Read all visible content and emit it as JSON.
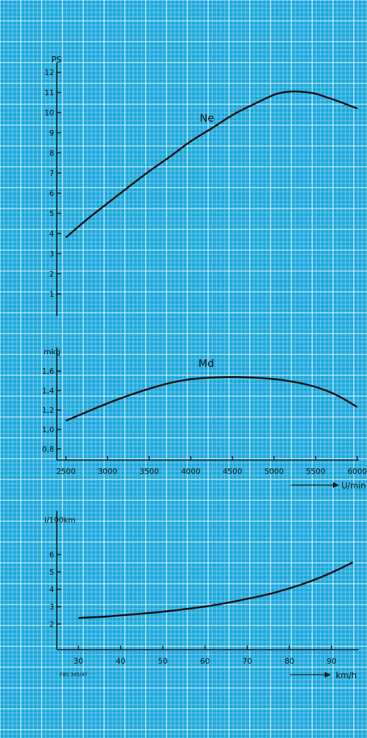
{
  "colors": {
    "paper": "#1aa8dc",
    "grid_minor": "#ffffff",
    "ink": "#111111"
  },
  "chart_data": [
    {
      "type": "line",
      "title": "",
      "ylabel": "PS",
      "xlabel": "U/min",
      "xlim": [
        2500,
        6000
      ],
      "ylim": [
        0,
        12
      ],
      "yticks": [
        "1",
        "2",
        "3",
        "4",
        "5",
        "6",
        "7",
        "8",
        "9",
        "10",
        "11",
        "12"
      ],
      "grid": true,
      "series": [
        {
          "name": "Ne",
          "x": [
            2500,
            2750,
            3000,
            3250,
            3500,
            3750,
            4000,
            4250,
            4500,
            4750,
            5000,
            5100,
            5200,
            5300,
            5400,
            5500,
            5600,
            5750,
            6000
          ],
          "y": [
            3.8,
            4.7,
            5.5,
            6.3,
            7.1,
            7.8,
            8.6,
            9.2,
            9.9,
            10.4,
            10.9,
            11.0,
            11.05,
            11.05,
            11.0,
            10.95,
            10.8,
            10.6,
            10.2
          ]
        }
      ]
    },
    {
      "type": "line",
      "title": "",
      "ylabel": "mkg",
      "xlabel": "U/min",
      "xlim": [
        2500,
        6000
      ],
      "ylim": [
        0.62,
        1.72
      ],
      "yticks": [
        "0,8",
        "1,0",
        "1,2",
        "1,4",
        "1,6"
      ],
      "xticks": [
        "2500",
        "3000",
        "3500",
        "4000",
        "4500",
        "5000",
        "5500",
        "6000"
      ],
      "grid": true,
      "series": [
        {
          "name": "Md",
          "x": [
            2500,
            2750,
            3000,
            3250,
            3500,
            3750,
            4000,
            4250,
            4500,
            4750,
            5000,
            5250,
            5500,
            5750,
            6000
          ],
          "y": [
            1.09,
            1.18,
            1.27,
            1.35,
            1.42,
            1.48,
            1.52,
            1.535,
            1.54,
            1.535,
            1.52,
            1.49,
            1.44,
            1.36,
            1.23
          ]
        }
      ]
    },
    {
      "type": "line",
      "title": "",
      "ylabel": "l/100km",
      "xlabel": "km/h",
      "xlim": [
        30,
        95
      ],
      "ylim": [
        0.5,
        6.8
      ],
      "yticks": [
        "2",
        "3",
        "4",
        "5",
        "6"
      ],
      "xticks": [
        "30",
        "40",
        "50",
        "60",
        "70",
        "80",
        "90"
      ],
      "grid": true,
      "series": [
        {
          "name": "",
          "x": [
            30,
            35,
            40,
            45,
            50,
            55,
            60,
            65,
            70,
            75,
            80,
            85,
            90,
            95
          ],
          "y": [
            2.35,
            2.4,
            2.5,
            2.6,
            2.7,
            2.85,
            3.0,
            3.2,
            3.45,
            3.7,
            4.05,
            4.45,
            4.95,
            5.55
          ]
        }
      ]
    }
  ],
  "footnote": "FBS 345/47"
}
